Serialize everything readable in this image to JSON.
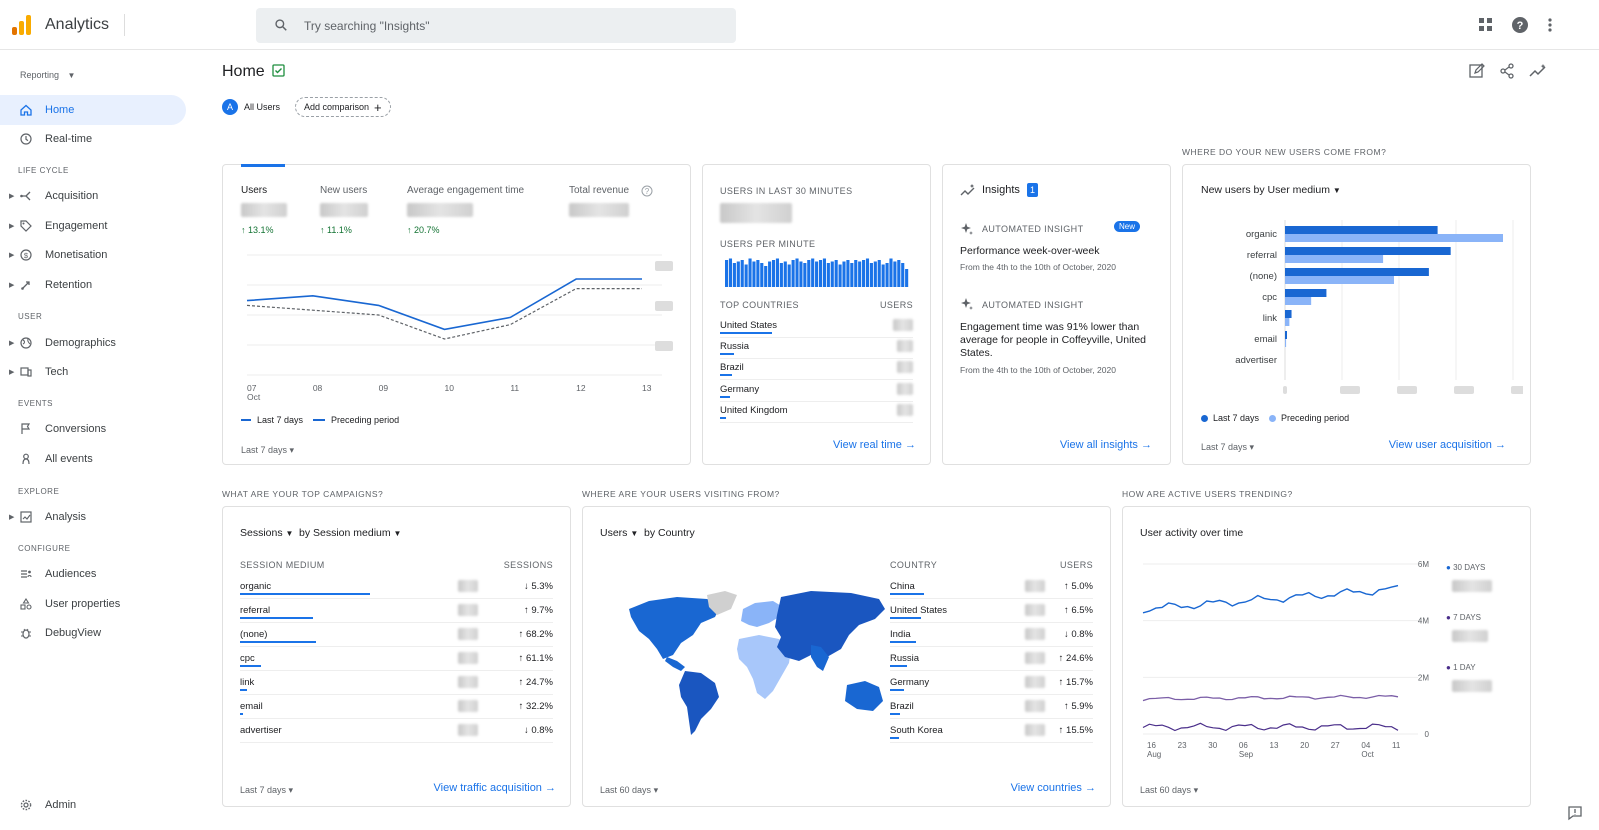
{
  "app": {
    "title": "Analytics",
    "search_placeholder": "Try searching \"Insights\""
  },
  "sidebar": {
    "reporting_label": "Reporting",
    "items": {
      "home": "Home",
      "realtime": "Real-time",
      "lifecycle": "LIFE CYCLE",
      "acquisition": "Acquisition",
      "engagement": "Engagement",
      "monetisation": "Monetisation",
      "retention": "Retention",
      "user": "USER",
      "demographics": "Demographics",
      "tech": "Tech",
      "events": "EVENTS",
      "conversions": "Conversions",
      "all_events": "All events",
      "explore": "EXPLORE",
      "analysis": "Analysis",
      "configure": "CONFIGURE",
      "audiences": "Audiences",
      "user_properties": "User properties",
      "debugview": "DebugView",
      "admin": "Admin"
    }
  },
  "header": {
    "title": "Home",
    "all_users": "All Users",
    "all_users_badge": "A",
    "add_comparison": "Add comparison"
  },
  "overview": {
    "metrics": [
      {
        "label": "Users",
        "change": "13.1%"
      },
      {
        "label": "New users",
        "change": "11.1%"
      },
      {
        "label": "Average engagement time",
        "change": "20.7%"
      },
      {
        "label": "Total revenue",
        "change": ""
      }
    ],
    "x_labels": [
      "07\nOct",
      "08",
      "09",
      "10",
      "11",
      "12",
      "13"
    ],
    "legend_current": "Last 7 days",
    "legend_previous": "Preceding period",
    "footer": "Last 7 days",
    "chart_data": {
      "type": "line",
      "x": [
        "07 Oct",
        "08",
        "09",
        "10",
        "11",
        "12",
        "13"
      ],
      "series": [
        {
          "name": "Last 7 days",
          "values": [
            0.62,
            0.66,
            0.58,
            0.38,
            0.48,
            0.8,
            0.8
          ]
        },
        {
          "name": "Preceding period",
          "values": [
            0.58,
            0.54,
            0.5,
            0.3,
            0.42,
            0.72,
            0.72
          ]
        }
      ]
    }
  },
  "realtime": {
    "title": "USERS IN LAST 30 MINUTES",
    "per_minute": "USERS PER MINUTE",
    "col_country": "TOP COUNTRIES",
    "col_users": "USERS",
    "countries": [
      "United States",
      "Russia",
      "Brazil",
      "Germany",
      "United Kingdom"
    ],
    "link": "View real time",
    "bars": [
      0.9,
      0.95,
      0.8,
      0.85,
      0.9,
      0.75,
      0.95,
      0.85,
      0.9,
      0.8,
      0.7,
      0.85,
      0.9,
      0.95,
      0.8,
      0.85,
      0.75,
      0.9,
      0.95,
      0.85,
      0.8,
      0.9,
      0.95,
      0.85,
      0.9,
      0.95,
      0.8,
      0.85,
      0.9,
      0.75,
      0.85,
      0.9,
      0.8,
      0.9,
      0.85,
      0.9,
      0.95,
      0.8,
      0.85,
      0.9,
      0.75,
      0.8,
      0.95,
      0.85,
      0.9,
      0.8,
      0.6
    ]
  },
  "insights": {
    "title": "Insights",
    "count": "1",
    "items": [
      {
        "kind": "AUTOMATED INSIGHT",
        "badge": "New",
        "title": "Performance week-over-week",
        "date": "From the 4th to the 10th of October, 2020"
      },
      {
        "kind": "AUTOMATED INSIGHT",
        "title": "Engagement time was 91% lower than average for people in Coffeyville, United States.",
        "date": "From the 4th to the 10th of October, 2020"
      }
    ],
    "link": "View all insights"
  },
  "acquisition": {
    "section": "WHERE DO YOUR NEW USERS COME FROM?",
    "title": "New users by User medium",
    "legend_current": "Last 7 days",
    "legend_previous": "Preceding period",
    "footer": "Last 7 days",
    "link": "View user acquisition",
    "chart_data": {
      "type": "bar",
      "categories": [
        "organic",
        "referral",
        "(none)",
        "cpc",
        "link",
        "email",
        "advertiser"
      ],
      "series": [
        {
          "name": "Last 7 days",
          "values": [
            0.7,
            0.76,
            0.66,
            0.19,
            0.03,
            0.005,
            0
          ]
        },
        {
          "name": "Preceding period",
          "values": [
            1.0,
            0.45,
            0.5,
            0.12,
            0.02,
            0.005,
            0
          ]
        }
      ]
    }
  },
  "campaigns": {
    "section": "WHAT ARE YOUR TOP CAMPAIGNS?",
    "metric": "Sessions",
    "dimension": "by Session medium",
    "col_name": "SESSION MEDIUM",
    "col_value": "SESSIONS",
    "rows": [
      {
        "name": "organic",
        "change": "5.3%",
        "dir": "down",
        "w": 0.75
      },
      {
        "name": "referral",
        "change": "9.7%",
        "dir": "up",
        "w": 0.42
      },
      {
        "name": "(none)",
        "change": "68.2%",
        "dir": "up",
        "w": 0.44
      },
      {
        "name": "cpc",
        "change": "61.1%",
        "dir": "up",
        "w": 0.12
      },
      {
        "name": "link",
        "change": "24.7%",
        "dir": "up",
        "w": 0.04
      },
      {
        "name": "email",
        "change": "32.2%",
        "dir": "up",
        "w": 0.02
      },
      {
        "name": "advertiser",
        "change": "0.8%",
        "dir": "down",
        "w": 0.0
      }
    ],
    "footer": "Last 7 days",
    "link": "View traffic acquisition"
  },
  "countries": {
    "section": "WHERE ARE YOUR USERS VISITING FROM?",
    "metric": "Users",
    "dimension": "by Country",
    "col_name": "COUNTRY",
    "col_value": "USERS",
    "rows": [
      {
        "name": "China",
        "change": "5.0%",
        "dir": "up",
        "w": 0.2
      },
      {
        "name": "United States",
        "change": "6.5%",
        "dir": "up",
        "w": 0.18
      },
      {
        "name": "India",
        "change": "0.8%",
        "dir": "down",
        "w": 0.15
      },
      {
        "name": "Russia",
        "change": "24.6%",
        "dir": "up",
        "w": 0.1
      },
      {
        "name": "Germany",
        "change": "15.7%",
        "dir": "up",
        "w": 0.08
      },
      {
        "name": "Brazil",
        "change": "5.9%",
        "dir": "up",
        "w": 0.06
      },
      {
        "name": "South Korea",
        "change": "15.5%",
        "dir": "up",
        "w": 0.05
      }
    ],
    "footer": "Last 60 days",
    "link": "View countries"
  },
  "activity": {
    "section": "HOW ARE ACTIVE USERS TRENDING?",
    "title": "User activity over time",
    "y_labels": [
      "6M",
      "4M",
      "2M",
      "0"
    ],
    "x_labels": [
      "16\nAug",
      "23",
      "30",
      "06\nSep",
      "13",
      "20",
      "27",
      "04\nOct",
      "11"
    ],
    "legend": [
      "30 DAYS",
      "7 DAYS",
      "1 DAY"
    ],
    "footer": "Last 60 days"
  },
  "colors": {
    "accent": "#1a73e8",
    "dark_blue": "#1967d2",
    "light_blue": "#8ab4f8",
    "purple": "#7b5ea7",
    "green": "#137333",
    "logo_orange": "#f9ab00",
    "logo_dark": "#e37400"
  }
}
